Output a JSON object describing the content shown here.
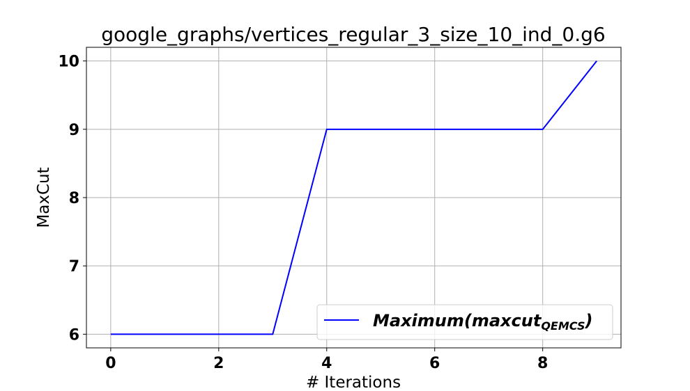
{
  "chart_data": {
    "type": "line",
    "title": "google_graphs/vertices_regular_3_size_10_ind_0.g6",
    "xlabel": "# Iterations",
    "ylabel": "MaxCut",
    "xlim": [
      -0.45,
      9.45
    ],
    "ylim": [
      5.8,
      10.2
    ],
    "x_ticks": [
      0,
      2,
      4,
      6,
      8
    ],
    "y_ticks": [
      6,
      7,
      8,
      9,
      10
    ],
    "grid": true,
    "legend_position": "lower-right",
    "series": [
      {
        "name": "Maximum(maxcut_QEMCS)",
        "legend_main": "Maximum(maxcut",
        "legend_sub": "QEMCS",
        "legend_close": ")",
        "color": "#0000ff",
        "x": [
          0,
          1,
          2,
          3,
          4,
          5,
          6,
          7,
          8,
          9
        ],
        "y": [
          6,
          6,
          6,
          6,
          9,
          9,
          9,
          9,
          9,
          10
        ]
      }
    ]
  }
}
